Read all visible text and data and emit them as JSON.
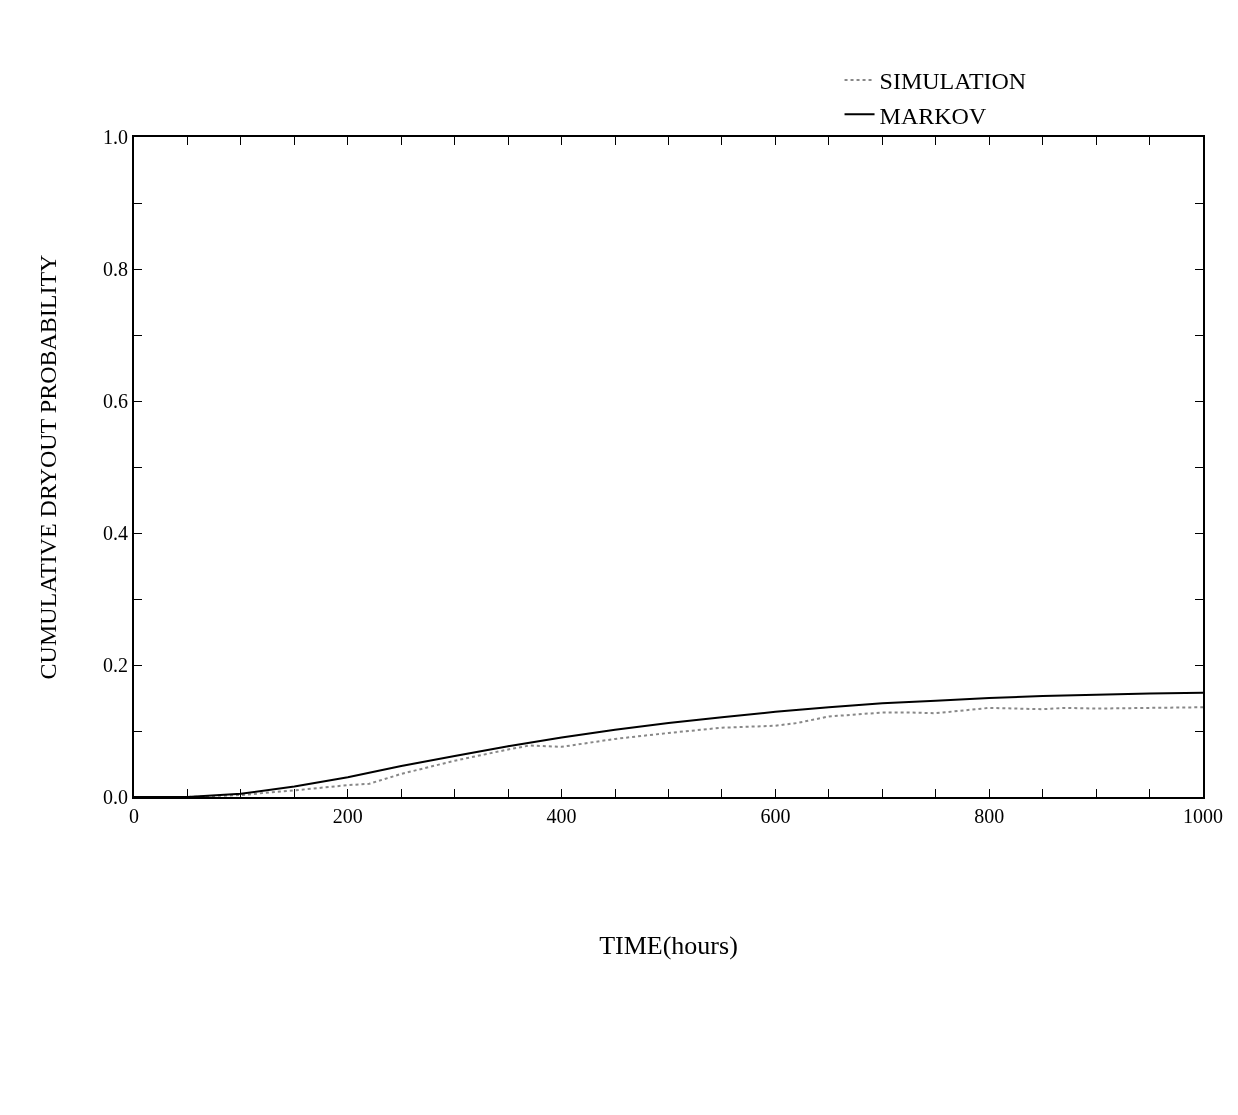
{
  "chart_data": {
    "type": "line",
    "xlabel": "TIME(hours)",
    "ylabel": "CUMULATIVE DRYOUT PROBABILITY",
    "xlim": [
      0,
      1000
    ],
    "ylim": [
      0,
      1.0
    ],
    "xticks": [
      0,
      {
        "value": 50,
        "label": null
      },
      200,
      {
        "value": 100,
        "label": null
      },
      {
        "value": 150,
        "label": null
      },
      {
        "value": 250,
        "label": null
      },
      {
        "value": 300,
        "label": null
      },
      {
        "value": 350,
        "label": null
      },
      400,
      {
        "value": 450,
        "label": null
      },
      {
        "value": 500,
        "label": null
      },
      {
        "value": 550,
        "label": null
      },
      600,
      {
        "value": 650,
        "label": null
      },
      {
        "value": 700,
        "label": null
      },
      {
        "value": 750,
        "label": null
      },
      800,
      {
        "value": 850,
        "label": null
      },
      {
        "value": 900,
        "label": null
      },
      {
        "value": 950,
        "label": null
      },
      1000
    ],
    "yticks": [
      {
        "value": 0,
        "label": "0.0"
      },
      {
        "value": 0.1,
        "label": null
      },
      0.2,
      {
        "value": 0.3,
        "label": null
      },
      0.4,
      {
        "value": 0.5,
        "label": null
      },
      0.6,
      {
        "value": 0.7,
        "label": null
      },
      0.8,
      {
        "value": 0.9,
        "label": null
      },
      {
        "value": 1.0,
        "label": "1.0"
      }
    ],
    "legend": "top right",
    "marker": "none",
    "series": [
      {
        "name": "SIMULATION",
        "color": "#888888",
        "line_style": "dotted",
        "x": [
          0,
          50,
          100,
          150,
          200,
          220,
          250,
          300,
          350,
          370,
          400,
          450,
          500,
          550,
          600,
          620,
          650,
          700,
          725,
          750,
          800,
          850,
          870,
          900,
          950,
          1000
        ],
        "values": [
          0,
          0,
          0.003,
          0.01,
          0.018,
          0.02,
          0.035,
          0.055,
          0.072,
          0.078,
          0.076,
          0.088,
          0.097,
          0.105,
          0.108,
          0.112,
          0.122,
          0.128,
          0.128,
          0.127,
          0.135,
          0.133,
          0.135,
          0.134,
          0.135,
          0.136
        ]
      },
      {
        "name": "MARKOV",
        "color": "#000000",
        "line_style": "solid",
        "x": [
          0,
          50,
          100,
          150,
          200,
          250,
          300,
          350,
          400,
          450,
          500,
          550,
          600,
          650,
          700,
          750,
          800,
          850,
          900,
          950,
          1000
        ],
        "values": [
          0,
          0,
          0.005,
          0.016,
          0.03,
          0.047,
          0.062,
          0.077,
          0.09,
          0.102,
          0.112,
          0.121,
          0.129,
          0.136,
          0.142,
          0.146,
          0.15,
          0.153,
          0.155,
          0.157,
          0.158
        ]
      }
    ]
  }
}
